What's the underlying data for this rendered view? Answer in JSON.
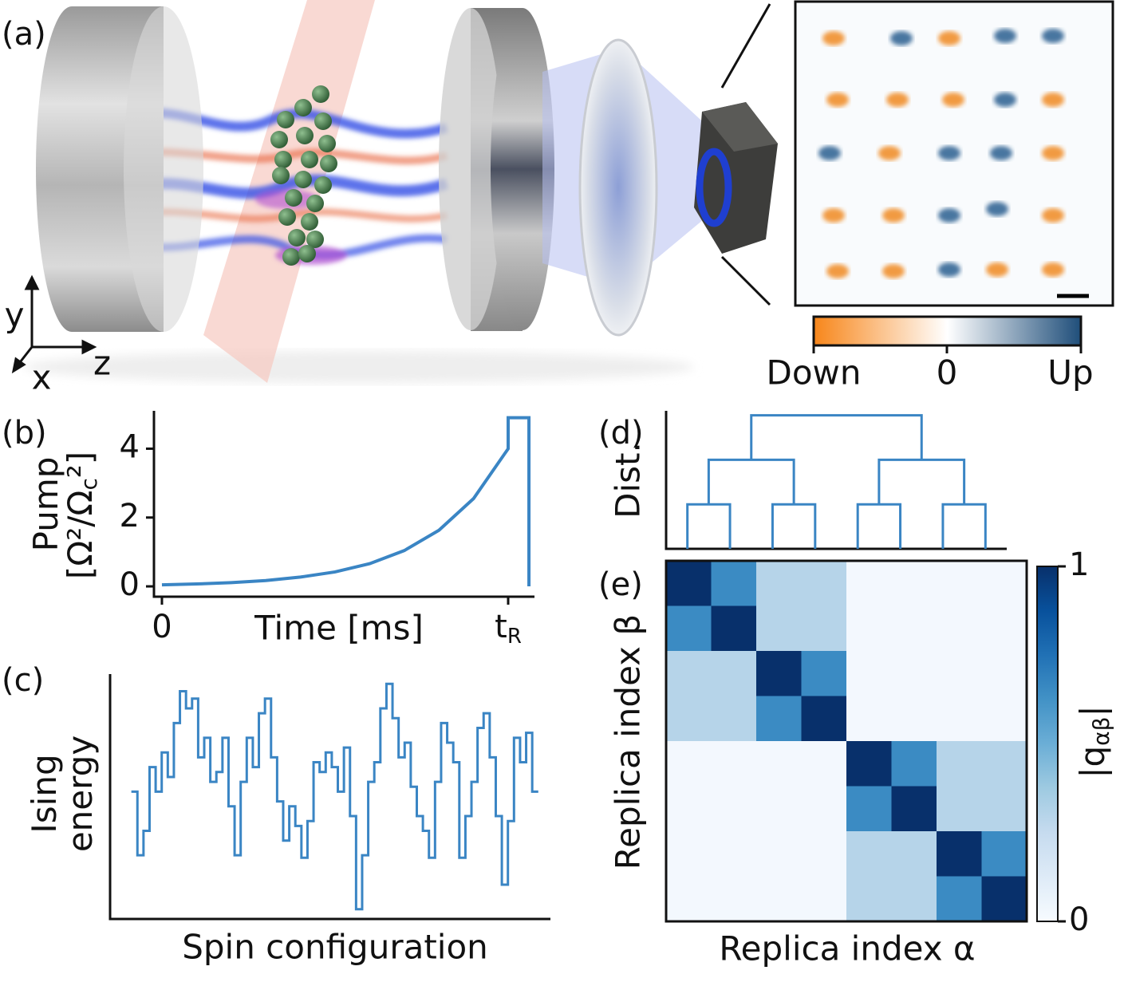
{
  "illustration": {
    "panel_label": "(a)",
    "axes": {
      "y": "y",
      "z": "z",
      "x": "x"
    },
    "colorbar": {
      "labels": [
        "Down",
        "0",
        "Up"
      ],
      "colors": [
        "#f7861a",
        "#ffffff",
        "#1f4e7a"
      ]
    }
  },
  "chart_data": [
    {
      "type": "line",
      "panel_label": "(b)",
      "ylabel": [
        "Pump",
        "[Ω²/Ω",
        "c",
        "²]"
      ],
      "xlabel": "Time [ms]",
      "x": [
        0,
        0.1,
        0.2,
        0.3,
        0.4,
        0.5,
        0.6,
        0.7,
        0.8,
        0.9,
        1.0,
        1.0,
        1.06,
        1.06
      ],
      "values": [
        0.044,
        0.07,
        0.109,
        0.17,
        0.27,
        0.42,
        0.66,
        1.04,
        1.63,
        2.55,
        4.0,
        4.9,
        4.9,
        0
      ],
      "color": "#3a85c4",
      "xlim": [
        -0.023,
        1.076
      ],
      "ylim": [
        -0.3,
        5.1
      ],
      "xticks": [
        0,
        {
          "value": 1,
          "label": "t",
          "sub": "R"
        }
      ],
      "yticks": [
        0,
        2,
        4
      ]
    },
    {
      "type": "step",
      "panel_label": "(c)",
      "ylabel": [
        "Ising",
        "energy"
      ],
      "xlabel": "Spin configuration",
      "values": [
        5.2,
        2.6,
        3.6,
        6.2,
        5.2,
        6.8,
        5.8,
        8,
        9.3,
        8.6,
        9.0,
        6.6,
        7.4,
        5.6,
        6,
        7.4,
        4.6,
        2.6,
        5.6,
        7.4,
        6.2,
        8.4,
        9.0,
        6.6,
        4.8,
        3.2,
        4.6,
        3.8,
        2.5,
        4.0,
        6.4,
        6.0,
        6.8,
        6.2,
        5.2,
        7.0,
        4.2,
        0.4,
        2.6,
        5.6,
        6.4,
        8.6,
        9.6,
        8.2,
        6.6,
        7.2,
        5.4,
        4.2,
        3.6,
        2.5,
        5.6,
        8.0,
        7.2,
        6.4,
        2.5,
        4.2,
        5.6,
        7.8,
        8.4,
        6.6,
        4.2,
        1.4,
        4.0,
        7.4,
        6.4,
        7.6,
        5.2
      ],
      "color": "#3a85c4",
      "xlim": [
        -3.5,
        69
      ],
      "ylim": [
        0,
        10
      ]
    },
    {
      "type": "dendrogram",
      "panel_label": "(d)",
      "ylabel": "Dist.",
      "merges": [
        [
          0,
          1
        ],
        [
          2,
          3
        ],
        [
          4,
          5
        ],
        [
          6,
          7
        ],
        [
          8,
          9
        ],
        [
          10,
          11
        ],
        [
          12,
          13
        ]
      ],
      "heights": [
        1,
        1,
        1,
        1,
        2,
        2,
        3
      ],
      "color": "#3a85c4",
      "ylim": [
        0,
        3.1
      ]
    },
    {
      "type": "heatmap",
      "panel_label": "(e)",
      "xlabel": "Replica index α",
      "ylabel": "Replica index β",
      "colorbar_label": [
        "|q",
        "αβ",
        "|"
      ],
      "colormap": "Blues",
      "zlim": [
        0,
        1
      ],
      "zticks": [
        0,
        1
      ],
      "values": [
        [
          1,
          0.65,
          0.3,
          0.3,
          0.02,
          0.02,
          0.02,
          0.02
        ],
        [
          0.65,
          1,
          0.3,
          0.3,
          0.02,
          0.02,
          0.02,
          0.02
        ],
        [
          0.3,
          0.3,
          1,
          0.65,
          0.02,
          0.02,
          0.02,
          0.02
        ],
        [
          0.3,
          0.3,
          0.65,
          1,
          0.02,
          0.02,
          0.02,
          0.02
        ],
        [
          0.02,
          0.02,
          0.02,
          0.02,
          1,
          0.65,
          0.3,
          0.3
        ],
        [
          0.02,
          0.02,
          0.02,
          0.02,
          0.65,
          1,
          0.3,
          0.3
        ],
        [
          0.02,
          0.02,
          0.02,
          0.02,
          0.3,
          0.3,
          1,
          0.65
        ],
        [
          0.02,
          0.02,
          0.02,
          0.02,
          0.3,
          0.3,
          0.65,
          1
        ]
      ]
    }
  ]
}
